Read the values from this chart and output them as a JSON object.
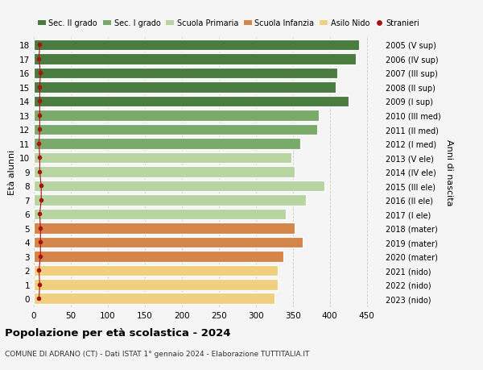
{
  "ages": [
    18,
    17,
    16,
    15,
    14,
    13,
    12,
    11,
    10,
    9,
    8,
    7,
    6,
    5,
    4,
    3,
    2,
    1,
    0
  ],
  "values": [
    440,
    435,
    410,
    408,
    425,
    385,
    383,
    360,
    348,
    353,
    393,
    368,
    340,
    352,
    363,
    337,
    330,
    330,
    325
  ],
  "stranieri": [
    8,
    7,
    9,
    8,
    8,
    8,
    8,
    7,
    8,
    8,
    10,
    10,
    8,
    9,
    9,
    9,
    7,
    8,
    7
  ],
  "right_labels": [
    "2005 (V sup)",
    "2006 (IV sup)",
    "2007 (III sup)",
    "2008 (II sup)",
    "2009 (I sup)",
    "2010 (III med)",
    "2011 (II med)",
    "2012 (I med)",
    "2013 (V ele)",
    "2014 (IV ele)",
    "2015 (III ele)",
    "2016 (II ele)",
    "2017 (I ele)",
    "2018 (mater)",
    "2019 (mater)",
    "2020 (mater)",
    "2021 (nido)",
    "2022 (nido)",
    "2023 (nido)"
  ],
  "bar_colors": [
    "#4a7c3f",
    "#4a7c3f",
    "#4a7c3f",
    "#4a7c3f",
    "#4a7c3f",
    "#7aaa6a",
    "#7aaa6a",
    "#7aaa6a",
    "#b8d4a0",
    "#b8d4a0",
    "#b8d4a0",
    "#b8d4a0",
    "#b8d4a0",
    "#d4854a",
    "#d4854a",
    "#d4854a",
    "#f0d080",
    "#f0d080",
    "#f0d080"
  ],
  "legend_labels": [
    "Sec. II grado",
    "Sec. I grado",
    "Scuola Primaria",
    "Scuola Infanzia",
    "Asilo Nido",
    "Stranieri"
  ],
  "legend_colors": [
    "#4a7c3f",
    "#7aaa6a",
    "#b8d4a0",
    "#d4854a",
    "#f0d080",
    "#cc2222"
  ],
  "title": "Popolazione per età scolastica - 2024",
  "subtitle": "COMUNE DI ADRANO (CT) - Dati ISTAT 1° gennaio 2024 - Elaborazione TUTTITALIA.IT",
  "ylabel_left": "Età alunni",
  "ylabel_right": "Anni di nascita",
  "xlim": [
    0,
    470
  ],
  "xticks": [
    0,
    50,
    100,
    150,
    200,
    250,
    300,
    350,
    400,
    450
  ],
  "bg_color": "#f5f5f5",
  "stranieri_color": "#aa1111",
  "bar_height": 0.78
}
